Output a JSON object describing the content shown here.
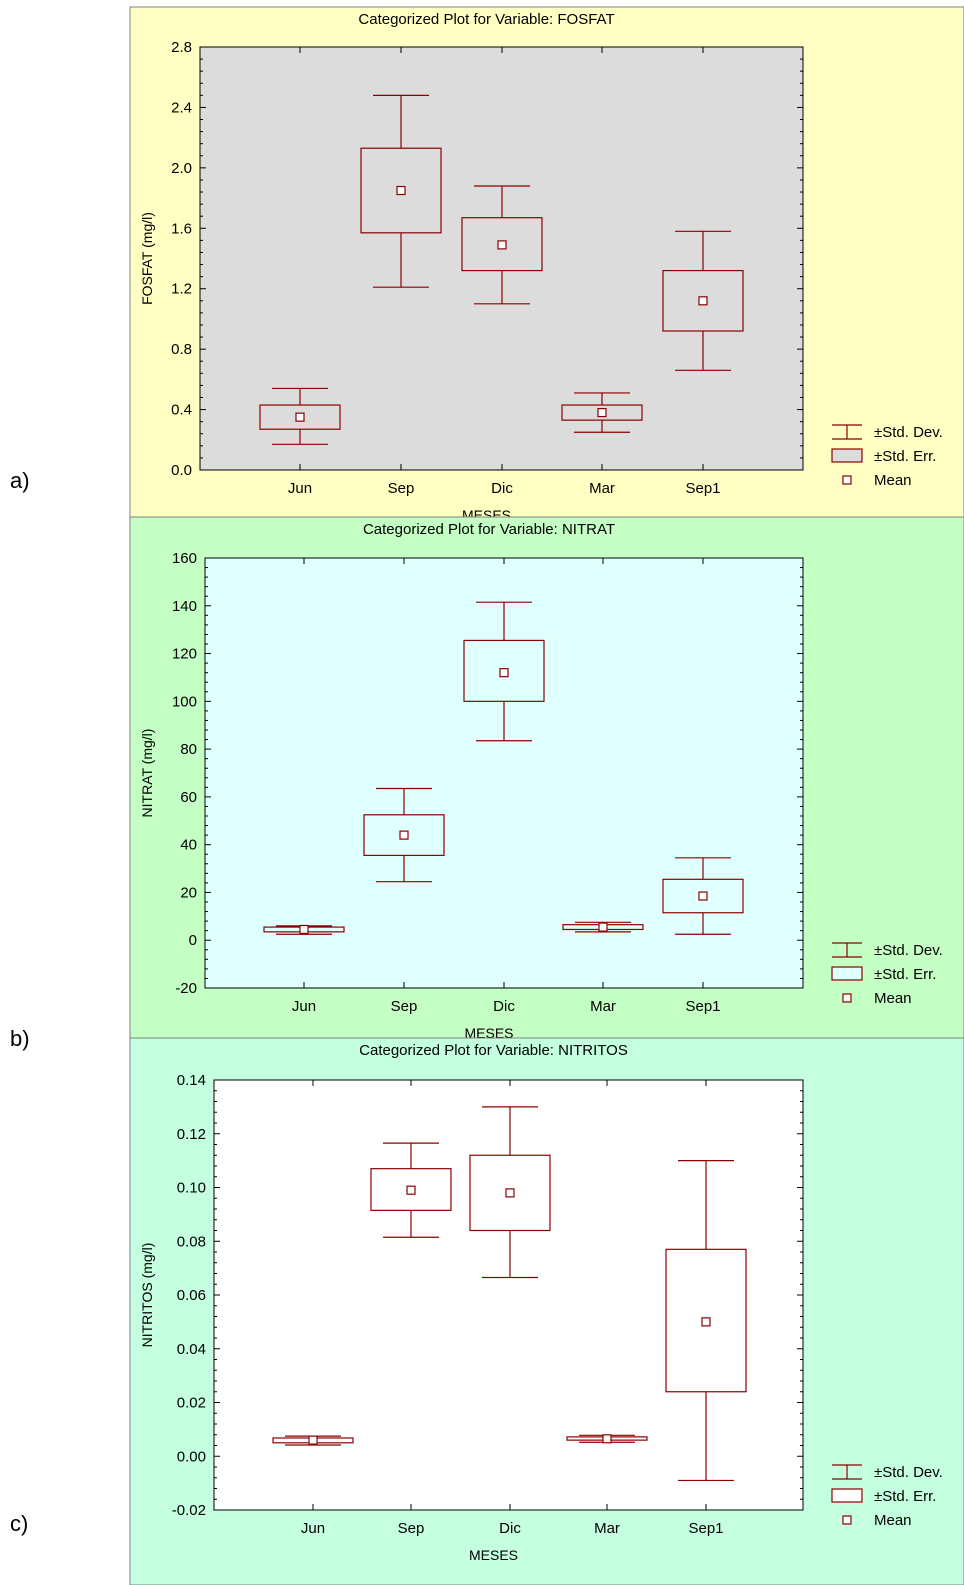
{
  "colors": {
    "series": "#8b0000",
    "axis": "#000000",
    "mean_fill": "#ffffff"
  },
  "chart_data": [
    {
      "type": "box",
      "panel_label": "a)",
      "title": "Categorized Plot for Variable: FOSFAT",
      "xlabel": "MESES",
      "ylabel": "FOSFAT (mg/l)",
      "categories": [
        "Jun",
        "Sep",
        "Dic",
        "Mar",
        "Sep1"
      ],
      "ylim": [
        0.0,
        2.8
      ],
      "yticks": [
        0.0,
        0.4,
        0.8,
        1.2,
        1.6,
        2.0,
        2.4,
        2.8
      ],
      "tick_labels": [
        "0.0",
        "0.4",
        "0.8",
        "1.2",
        "1.6",
        "2.0",
        "2.4",
        "2.8"
      ],
      "panel_color": "#ffffc4",
      "plot_color": "#dcdcdc",
      "mean": [
        0.35,
        1.85,
        1.49,
        0.38,
        1.12
      ],
      "se": [
        [
          0.27,
          0.43
        ],
        [
          1.57,
          2.13
        ],
        [
          1.32,
          1.67
        ],
        [
          0.33,
          0.43
        ],
        [
          0.92,
          1.32
        ]
      ],
      "sd": [
        [
          0.17,
          0.54
        ],
        [
          1.21,
          2.48
        ],
        [
          1.1,
          1.88
        ],
        [
          0.25,
          0.51
        ],
        [
          0.66,
          1.58
        ]
      ],
      "legend": [
        "±Std. Dev.",
        "±Std. Err.",
        "Mean"
      ],
      "legend_position": "bottom-right"
    },
    {
      "type": "box",
      "panel_label": "b)",
      "title": "Categorized Plot for Variable: NITRAT",
      "xlabel": "MESES",
      "ylabel": "NITRAT (mg/l)",
      "categories": [
        "Jun",
        "Sep",
        "Dic",
        "Mar",
        "Sep1"
      ],
      "ylim": [
        -20,
        160
      ],
      "yticks": [
        -20,
        0,
        20,
        40,
        60,
        80,
        100,
        120,
        140,
        160
      ],
      "tick_labels": [
        "-20",
        "0",
        "20",
        "40",
        "60",
        "80",
        "100",
        "120",
        "140",
        "160"
      ],
      "panel_color": "#c4ffc4",
      "plot_color": "#e0ffff",
      "mean": [
        4.5,
        44,
        112,
        5.5,
        18.5
      ],
      "se": [
        [
          3.5,
          5.5
        ],
        [
          35.5,
          52.5
        ],
        [
          100,
          125.5
        ],
        [
          4.5,
          6.5
        ],
        [
          11.5,
          25.5
        ]
      ],
      "sd": [
        [
          2.5,
          6
        ],
        [
          24.5,
          63.5
        ],
        [
          83.5,
          141.5
        ],
        [
          3.5,
          7.5
        ],
        [
          2.5,
          34.5
        ]
      ],
      "legend": [
        "±Std. Dev.",
        "±Std. Err.",
        "Mean"
      ],
      "legend_position": "bottom-right"
    },
    {
      "type": "box",
      "panel_label": "c)",
      "title": "Categorized Plot for Variable: NITRITOS",
      "xlabel": "MESES",
      "ylabel": "NITRITOS (mg/l)",
      "categories": [
        "Jun",
        "Sep",
        "Dic",
        "Mar",
        "Sep1"
      ],
      "ylim": [
        -0.02,
        0.14
      ],
      "yticks": [
        -0.02,
        0.0,
        0.02,
        0.04,
        0.06,
        0.08,
        0.1,
        0.12,
        0.14
      ],
      "tick_labels": [
        "-0.02",
        "0.00",
        "0.02",
        "0.04",
        "0.06",
        "0.08",
        "0.10",
        "0.12",
        "0.14"
      ],
      "panel_color": "#c4ffe0",
      "plot_color": "#ffffff",
      "mean": [
        0.006,
        0.099,
        0.098,
        0.0065,
        0.05
      ],
      "se": [
        [
          0.005,
          0.0068
        ],
        [
          0.0915,
          0.107
        ],
        [
          0.084,
          0.112
        ],
        [
          0.006,
          0.0072
        ],
        [
          0.024,
          0.077
        ]
      ],
      "sd": [
        [
          0.0042,
          0.0075
        ],
        [
          0.0815,
          0.1165
        ],
        [
          0.0665,
          0.13
        ],
        [
          0.0052,
          0.0078
        ],
        [
          -0.009,
          0.11
        ]
      ],
      "legend": [
        "±Std. Dev.",
        "±Std. Err.",
        "Mean"
      ],
      "legend_position": "bottom-right"
    }
  ]
}
